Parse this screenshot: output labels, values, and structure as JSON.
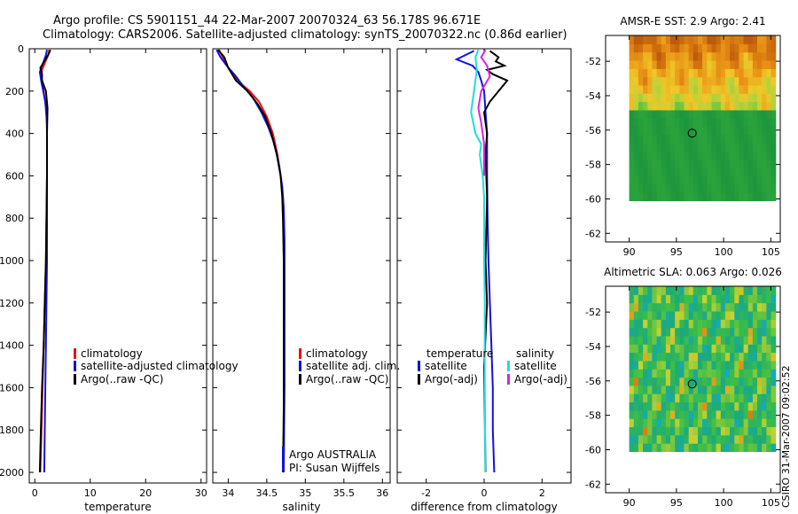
{
  "header": {
    "line1": "Argo profile: CS 5901151_44 22-Mar-2007 20070324_63 56.178S 96.671E",
    "line2": "Climatology: CARS2006. Satellite-adjusted climatology: synTS_20070322.nc (0.86d earlier)"
  },
  "side_stamp": "CSIRO 31-Mar-2007 09:02:52",
  "colors": {
    "red": "#ee1111",
    "blue": "#1111dd",
    "black": "#000000",
    "cyan": "#22dddd",
    "magenta": "#dd22dd"
  },
  "chart_data": [
    {
      "id": "temperature",
      "type": "line",
      "xlabel": "temperature",
      "xlim": [
        -1,
        31
      ],
      "ylim": [
        2050,
        0
      ],
      "xticks": [
        0,
        10,
        20,
        30
      ],
      "yticks": [
        0,
        200,
        400,
        600,
        800,
        1000,
        1200,
        1400,
        1600,
        1800,
        2000
      ],
      "legend": [
        "climatology",
        "satellite-adjusted climatology",
        "Argo(..raw -QC)"
      ],
      "series": [
        {
          "name": "climatology",
          "color": "red",
          "points": [
            [
              2.6,
              5
            ],
            [
              2.4,
              30
            ],
            [
              1.3,
              100
            ],
            [
              1.2,
              130
            ],
            [
              1.6,
              200
            ],
            [
              2.1,
              300
            ],
            [
              2.2,
              400
            ],
            [
              2.2,
              500
            ],
            [
              2.2,
              600
            ],
            [
              2.1,
              800
            ],
            [
              2.0,
              1000
            ],
            [
              1.8,
              1200
            ],
            [
              1.6,
              1400
            ],
            [
              1.4,
              1600
            ],
            [
              1.2,
              1800
            ],
            [
              1.0,
              2000
            ]
          ]
        },
        {
          "name": "satellite-adjusted",
          "color": "blue",
          "points": [
            [
              2.2,
              5
            ],
            [
              2.0,
              30
            ],
            [
              0.9,
              110
            ],
            [
              1.2,
              160
            ],
            [
              1.9,
              250
            ],
            [
              2.2,
              350
            ],
            [
              2.2,
              450
            ],
            [
              2.2,
              600
            ],
            [
              2.2,
              800
            ],
            [
              2.2,
              1000
            ],
            [
              2.1,
              1200
            ],
            [
              2.0,
              1400
            ],
            [
              1.9,
              1600
            ],
            [
              1.8,
              1800
            ],
            [
              1.7,
              2000
            ]
          ]
        },
        {
          "name": "Argo",
          "color": "black",
          "points": [
            [
              2.8,
              5
            ],
            [
              2.5,
              25
            ],
            [
              1.0,
              90
            ],
            [
              1.3,
              120
            ],
            [
              1.3,
              150
            ],
            [
              2.0,
              200
            ],
            [
              2.3,
              280
            ],
            [
              2.2,
              400
            ],
            [
              2.2,
              600
            ],
            [
              2.1,
              800
            ],
            [
              2.0,
              1000
            ],
            [
              1.8,
              1200
            ],
            [
              1.6,
              1400
            ],
            [
              1.3,
              1600
            ],
            [
              1.1,
              1800
            ],
            [
              0.9,
              2000
            ]
          ]
        }
      ]
    },
    {
      "id": "salinity",
      "type": "line",
      "xlabel": "salinity",
      "xlim": [
        33.8,
        36.1
      ],
      "ylim": [
        2050,
        0
      ],
      "xticks": [
        34,
        34.5,
        35,
        35.5,
        36
      ],
      "xticklabels": [
        "34",
        "34.5",
        "35",
        "35.5",
        "36"
      ],
      "legend": [
        "climatology",
        "satellite adj. clim.",
        "Argo(..raw -QC)"
      ],
      "annotations": [
        "Argo AUSTRALIA",
        "PI: Susan Wijffels"
      ],
      "series": [
        {
          "name": "climatology",
          "color": "red",
          "points": [
            [
              33.88,
              5
            ],
            [
              33.93,
              40
            ],
            [
              34.0,
              90
            ],
            [
              34.12,
              150
            ],
            [
              34.28,
              200
            ],
            [
              34.4,
              250
            ],
            [
              34.5,
              320
            ],
            [
              34.58,
              400
            ],
            [
              34.64,
              500
            ],
            [
              34.68,
              600
            ],
            [
              34.71,
              700
            ],
            [
              34.72,
              800
            ],
            [
              34.73,
              1000
            ],
            [
              34.73,
              1200
            ],
            [
              34.72,
              1500
            ],
            [
              34.72,
              1800
            ],
            [
              34.72,
              2000
            ]
          ]
        },
        {
          "name": "satellite adj. clim.",
          "color": "blue",
          "points": [
            [
              33.85,
              5
            ],
            [
              33.9,
              40
            ],
            [
              33.98,
              80
            ],
            [
              34.1,
              130
            ],
            [
              34.2,
              180
            ],
            [
              34.32,
              230
            ],
            [
              34.43,
              300
            ],
            [
              34.52,
              370
            ],
            [
              34.6,
              450
            ],
            [
              34.66,
              550
            ],
            [
              34.7,
              650
            ],
            [
              34.72,
              750
            ],
            [
              34.73,
              900
            ],
            [
              34.73,
              1100
            ],
            [
              34.73,
              1300
            ],
            [
              34.73,
              1600
            ],
            [
              34.72,
              2000
            ]
          ]
        },
        {
          "name": "Argo",
          "color": "black",
          "points": [
            [
              33.87,
              5
            ],
            [
              33.95,
              40
            ],
            [
              34.0,
              90
            ],
            [
              34.1,
              150
            ],
            [
              34.25,
              200
            ],
            [
              34.38,
              260
            ],
            [
              34.48,
              320
            ],
            [
              34.56,
              400
            ],
            [
              34.63,
              500
            ],
            [
              34.68,
              600
            ],
            [
              34.7,
              700
            ],
            [
              34.71,
              800
            ],
            [
              34.72,
              1000
            ],
            [
              34.72,
              1300
            ],
            [
              34.72,
              1700
            ],
            [
              34.71,
              2000
            ]
          ]
        }
      ]
    },
    {
      "id": "difference",
      "type": "line",
      "xlabel": "difference from climatology",
      "xlim": [
        -3,
        3
      ],
      "ylim": [
        2050,
        0
      ],
      "xticks": [
        -2,
        0,
        2
      ],
      "legend_titles": [
        "temperature",
        "salinity"
      ],
      "legend_left": [
        "satellite",
        "Argo(-adj)"
      ],
      "legend_right": [
        "satellite",
        "Argo(-adj)"
      ],
      "series": [
        {
          "name": "temperature satellite",
          "color": "blue",
          "points": [
            [
              -0.35,
              10
            ],
            [
              -0.95,
              50
            ],
            [
              -0.4,
              80
            ],
            [
              -0.2,
              110
            ],
            [
              -0.1,
              150
            ],
            [
              0.0,
              200
            ],
            [
              0.05,
              300
            ],
            [
              0.1,
              400
            ],
            [
              0.1,
              600
            ],
            [
              0.12,
              800
            ],
            [
              0.15,
              1000
            ],
            [
              0.2,
              1200
            ],
            [
              0.25,
              1400
            ],
            [
              0.3,
              1600
            ],
            [
              0.3,
              1800
            ],
            [
              0.35,
              2000
            ]
          ]
        },
        {
          "name": "temperature Argo",
          "color": "black",
          "points": [
            [
              0.2,
              10
            ],
            [
              0.5,
              40
            ],
            [
              0.4,
              60
            ],
            [
              0.7,
              80
            ],
            [
              0.1,
              100
            ],
            [
              0.3,
              120
            ],
            [
              0.8,
              150
            ],
            [
              0.5,
              200
            ],
            [
              0.2,
              250
            ],
            [
              0.0,
              300
            ],
            [
              0.1,
              400
            ],
            [
              0.05,
              500
            ],
            [
              0.1,
              700
            ],
            [
              0.05,
              1000
            ],
            [
              0.1,
              1200
            ],
            [
              0.0,
              1500
            ],
            [
              0.05,
              2000
            ]
          ]
        },
        {
          "name": "salinity satellite",
          "color": "cyan",
          "points": [
            [
              -0.2,
              5
            ],
            [
              -0.3,
              40
            ],
            [
              -0.25,
              100
            ],
            [
              -0.35,
              200
            ],
            [
              -0.45,
              300
            ],
            [
              -0.3,
              400
            ],
            [
              -0.1,
              450
            ],
            [
              -0.15,
              500
            ],
            [
              -0.05,
              600
            ],
            [
              0.0,
              700
            ],
            [
              0.0,
              800
            ],
            [
              0.0,
              1000
            ],
            [
              0.02,
              1200
            ],
            [
              0.02,
              1500
            ],
            [
              0.03,
              1800
            ],
            [
              0.04,
              2000
            ]
          ]
        },
        {
          "name": "salinity Argo",
          "color": "magenta",
          "points": [
            [
              0.05,
              5
            ],
            [
              -0.1,
              40
            ],
            [
              0.1,
              80
            ],
            [
              0.2,
              130
            ],
            [
              -0.1,
              200
            ],
            [
              -0.2,
              280
            ],
            [
              -0.1,
              350
            ],
            [
              0.0,
              450
            ],
            [
              0.0,
              600
            ]
          ]
        }
      ]
    },
    {
      "id": "sst-map",
      "type": "heatmap",
      "title": "AMSR-E SST: 2.9 Argo: 2.41",
      "xlim": [
        87.5,
        106
      ],
      "ylim": [
        -62.5,
        -50.5
      ],
      "xticks": [
        90,
        95,
        100,
        105
      ],
      "yticks": [
        -52,
        -54,
        -56,
        -58,
        -60,
        -62
      ],
      "data_extent": {
        "lon": [
          90,
          105.5
        ],
        "lat": [
          -60.1,
          -50.5
        ]
      },
      "marker": {
        "lon": 96.67,
        "lat": -56.18
      }
    },
    {
      "id": "sla-map",
      "type": "heatmap",
      "title": "Altimetric SLA: 0.063 Argo: 0.026",
      "xlim": [
        87.5,
        106
      ],
      "ylim": [
        -62.5,
        -50.5
      ],
      "xticks": [
        90,
        95,
        100,
        105
      ],
      "yticks": [
        -52,
        -54,
        -56,
        -58,
        -60,
        -62
      ],
      "data_extent": {
        "lon": [
          90,
          105.5
        ],
        "lat": [
          -60.1,
          -50.5
        ]
      },
      "marker": {
        "lon": 96.67,
        "lat": -56.18
      }
    }
  ]
}
